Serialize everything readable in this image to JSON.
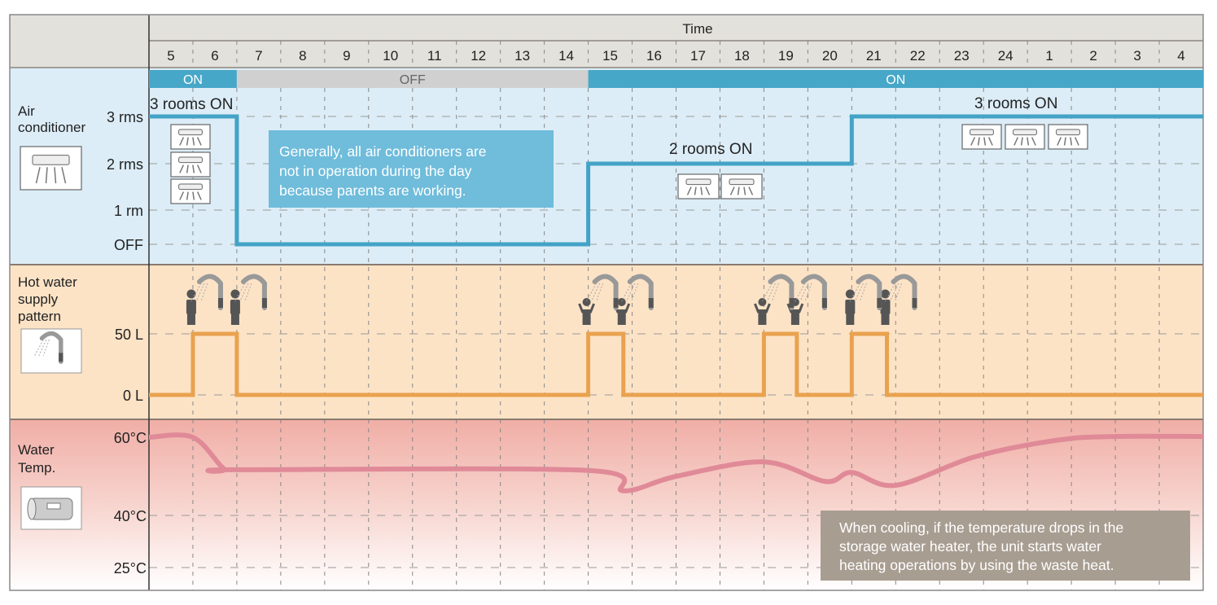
{
  "header": {
    "time_label": "Time",
    "hours": [
      "5",
      "6",
      "7",
      "8",
      "9",
      "10",
      "11",
      "12",
      "13",
      "14",
      "15",
      "16",
      "17",
      "18",
      "19",
      "20",
      "21",
      "22",
      "23",
      "24",
      "1",
      "2",
      "3",
      "4"
    ]
  },
  "status_bar": [
    {
      "label": "ON",
      "start": 0,
      "end": 2,
      "state": "on"
    },
    {
      "label": "OFF",
      "start": 2,
      "end": 10,
      "state": "off"
    },
    {
      "label": "ON",
      "start": 10,
      "end": 24,
      "state": "on"
    }
  ],
  "air_conditioner": {
    "title_line1": "Air",
    "title_line2": "conditioner",
    "icon": "air-conditioner-icon",
    "ticks": [
      "3 rms",
      "2 rms",
      "1 rm",
      "OFF"
    ],
    "tick_values": [
      3,
      2,
      1,
      0
    ],
    "series": [
      [
        0,
        3
      ],
      [
        2,
        3
      ],
      [
        2,
        0
      ],
      [
        10,
        0
      ],
      [
        10,
        2
      ],
      [
        16,
        2
      ],
      [
        16,
        3
      ],
      [
        24,
        3
      ]
    ],
    "annotations": [
      "3 rooms ON",
      "2 rooms ON",
      "3 rooms ON"
    ],
    "callout": [
      "Generally, all air conditioners are",
      "not in operation during the day",
      "because parents are working."
    ]
  },
  "hot_water": {
    "title_line1": "Hot water",
    "title_line2": "supply",
    "title_line3": "pattern",
    "icon": "shower-icon",
    "ticks": [
      "50 L",
      "0 L"
    ],
    "tick_values": [
      50,
      0
    ],
    "pulses": [
      {
        "start": 1,
        "end": 2,
        "value": 50,
        "people": "adult"
      },
      {
        "start": 10,
        "end": 10.8,
        "value": 50,
        "people": "child"
      },
      {
        "start": 14,
        "end": 14.75,
        "value": 50,
        "people": "child"
      },
      {
        "start": 16,
        "end": 16.8,
        "value": 50,
        "people": "adult"
      }
    ]
  },
  "water_temp": {
    "title_line1": "Water",
    "title_line2": "Temp.",
    "icon": "water-tank-icon",
    "ticks": [
      "60°C",
      "40°C",
      "25°C"
    ],
    "tick_values": [
      60,
      40,
      25
    ],
    "series": [
      [
        0,
        60
      ],
      [
        1,
        60
      ],
      [
        1.7,
        52
      ],
      [
        2,
        51.7
      ],
      [
        10,
        51.5
      ],
      [
        10.8,
        46.3
      ],
      [
        12,
        50
      ],
      [
        14,
        53.7
      ],
      [
        15.4,
        48.7
      ],
      [
        16,
        51
      ],
      [
        17,
        47.7
      ],
      [
        18.8,
        55
      ],
      [
        20.7,
        59.3
      ],
      [
        22,
        60.2
      ],
      [
        24,
        60.2
      ]
    ],
    "callout": [
      "When cooling, if the temperature drops in the",
      "storage water heater, the unit starts water",
      "heating operations by using the waste heat."
    ]
  },
  "colors": {
    "ac_line": "#43a3c6",
    "water_line": "#e9a24f",
    "temp_line": "#e08a98",
    "on": "#47a7c8",
    "off": "#d0d0d0",
    "callout_blue": "#6fbcdb",
    "callout_gray": "#a89d91"
  }
}
